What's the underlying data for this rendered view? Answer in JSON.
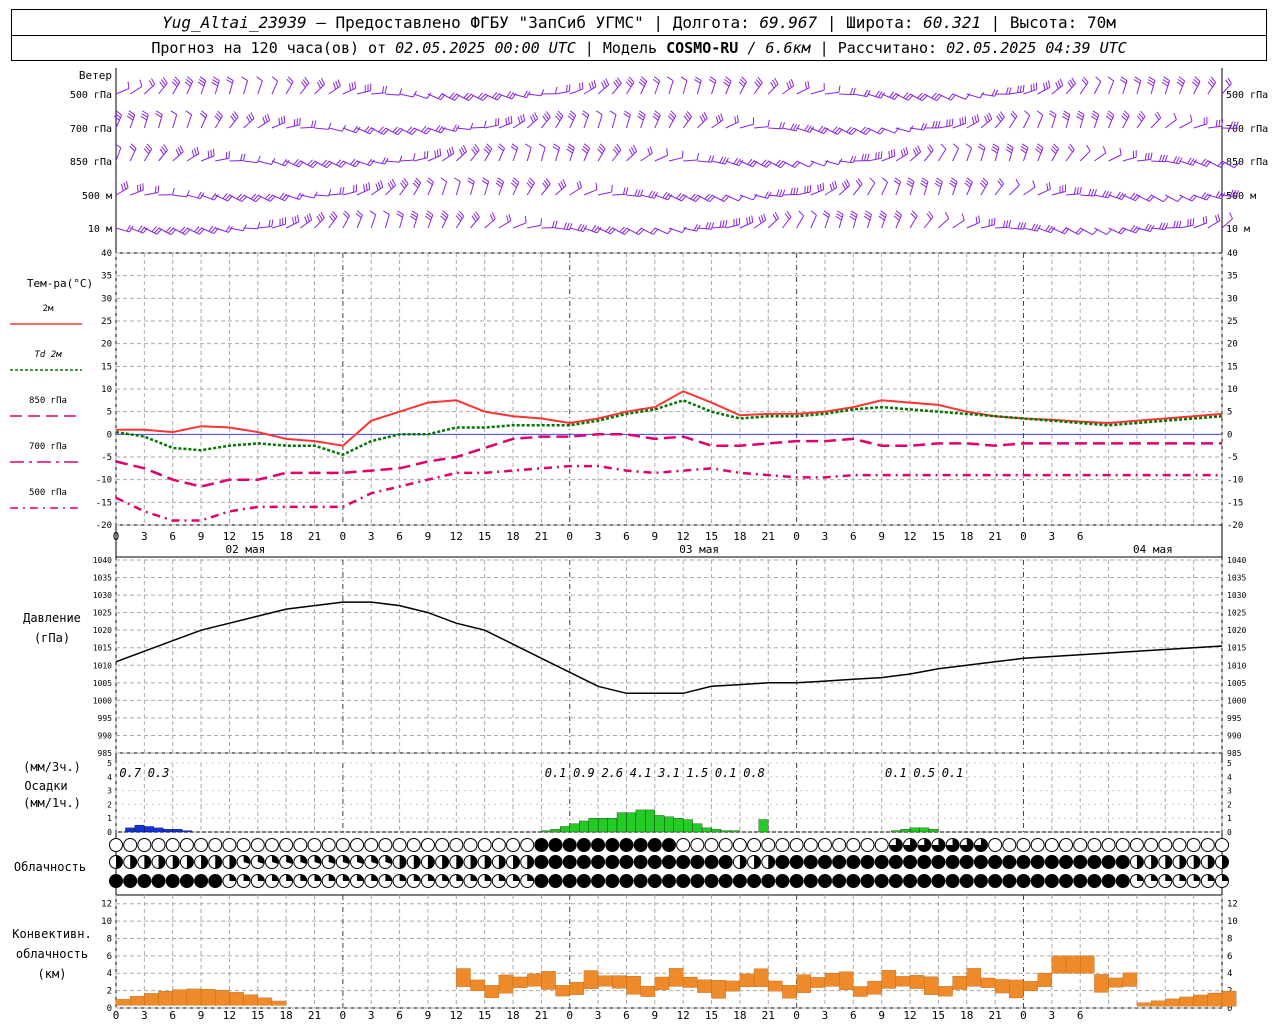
{
  "header": {
    "station": "Yug_Altai_23939",
    "provider": "– Предоставлено ФГБУ \"ЗапСиб УГМС\"",
    "lon_label": "Долгота:",
    "lon_value": "69.967",
    "lat_label": "Широта:",
    "lat_value": "60.321",
    "alt_label": "Высота:",
    "alt_value": "70м",
    "forecast_prefix": "Прогноз на 120 часа(ов) от",
    "forecast_start": "02.05.2025 00:00 UTC",
    "model_label": "Модель",
    "model_name": "COSMO-RU",
    "model_res": "/ 6.6км",
    "calc_label": "Рассчитано:",
    "calc_time": "02.05.2025 04:39 UTC"
  },
  "labels": {
    "wind_title": "Ветер",
    "wind_levels": [
      "500 гПа",
      "700 гПа",
      "850 гПа",
      "500 м",
      "10  м"
    ],
    "temp_title": "Тем-ра(°С)",
    "temp_legend": [
      "2м",
      "Td  2м",
      "850 гПа",
      "700 гПа",
      "500 гПа"
    ],
    "press_title": "Давление",
    "press_unit": "(гПа)",
    "precip_label_1": "(мм/3ч.)",
    "precip_label_2": "Осадки",
    "precip_label_3": "(мм/1ч.)",
    "cloud_title": "Облачность",
    "conv_1": "Конвективн.",
    "conv_2": "облачность",
    "conv_3": "(км)"
  },
  "colors": {
    "t2m": "#ff3333",
    "td2m": "#007700",
    "levels": "#e0006e",
    "pressure": "#000000",
    "precip_3h": "#1133dd",
    "precip_1h": "#22cc22",
    "convective": "#ef8a2a",
    "wind": "#8822dd",
    "zero_line": "#4444ff"
  },
  "chart_data": [
    {
      "type": "line",
      "name": "temperature",
      "x_hours": [
        0,
        3,
        6,
        9,
        12,
        15,
        18,
        21,
        24,
        27,
        30,
        33,
        36,
        39,
        42,
        45,
        48,
        51,
        54,
        57,
        60,
        63,
        66,
        69,
        72,
        75,
        78,
        81,
        84,
        87,
        90,
        93,
        96,
        99,
        102,
        105,
        108,
        111,
        114,
        117
      ],
      "x_ticks": [
        "0",
        "3",
        "6",
        "9",
        "12",
        "15",
        "18",
        "21",
        "0",
        "3",
        "6",
        "9",
        "12",
        "15",
        "18",
        "21",
        "0",
        "3",
        "6",
        "9",
        "12",
        "15",
        "18",
        "21",
        "0",
        "3",
        "6",
        "9",
        "12",
        "15",
        "18",
        "21",
        "0",
        "3",
        "6"
      ],
      "day_labels": [
        "02 мая",
        "03 мая",
        "04 мая"
      ],
      "ylim": [
        -20,
        40
      ],
      "yticks": [
        -20,
        -15,
        -10,
        -5,
        0,
        5,
        10,
        15,
        20,
        25,
        30,
        35,
        40
      ],
      "series": [
        {
          "key": "t2m",
          "values": [
            1,
            1,
            0.5,
            1.8,
            1.5,
            0.5,
            -1,
            -1.5,
            -2.5,
            3,
            5,
            7,
            7.5,
            5,
            4,
            3.5,
            2.5,
            3.5,
            5,
            6,
            9.5,
            7,
            4.2,
            4.5,
            4.5,
            5,
            6,
            7.5,
            7,
            6.5,
            5,
            4,
            3.5,
            3.2,
            2.8,
            2.5,
            3,
            3.5,
            4,
            4.5
          ]
        },
        {
          "key": "td2m",
          "values": [
            0.5,
            -0.5,
            -3,
            -3.5,
            -2.5,
            -2,
            -2.5,
            -2.5,
            -4.5,
            -1.5,
            0,
            0,
            1.5,
            1.5,
            2,
            2,
            2,
            3,
            4.5,
            5.5,
            7.5,
            5,
            3.5,
            4,
            4,
            4.5,
            5.5,
            6,
            5.5,
            5,
            4.5,
            4,
            3.5,
            3,
            2.5,
            2,
            2.5,
            3,
            3.5,
            4
          ]
        },
        {
          "key": "850",
          "values": [
            -6,
            -7.5,
            -10,
            -11.5,
            -10,
            -10,
            -8.5,
            -8.5,
            -8.5,
            -8,
            -7.5,
            -6,
            -5,
            -3,
            -1,
            -0.5,
            -0.5,
            0,
            0,
            -1,
            -0.5,
            -2.5,
            -2.5,
            -2,
            -1.5,
            -1.5,
            -1,
            -2.5,
            -2.5,
            -2,
            -2,
            -2.5,
            -2,
            -2,
            -2,
            -2,
            -2,
            -2,
            -2,
            -2
          ]
        },
        {
          "key": "700",
          "values": [
            -6,
            -7.5,
            -10,
            -11.5,
            -10,
            -10,
            -8.5,
            -8.5,
            -8.5,
            -8,
            -7.5,
            -6,
            -5,
            -3,
            -1,
            -0.5,
            -0.5,
            0,
            0,
            -1,
            -0.5,
            -2.5,
            -2.5,
            -2,
            -1.5,
            -1.5,
            -1,
            -2.5,
            -2.5,
            -2,
            -2,
            -2.5,
            -2,
            -2,
            -2,
            -2,
            -2,
            -2,
            -2,
            -2
          ]
        },
        {
          "key": "500",
          "values": [
            -14,
            -17,
            -19,
            -19,
            -17,
            -16,
            -16,
            -16,
            -16,
            -13,
            -11.5,
            -10,
            -8.5,
            -8.5,
            -8,
            -7.5,
            -7,
            -7,
            -8,
            -8.5,
            -8,
            -7.5,
            -8.5,
            -9,
            -9.5,
            -9.5,
            -9,
            -9,
            -9,
            -9,
            -9,
            -9,
            -9,
            -9,
            -9,
            -9,
            -9,
            -9,
            -9,
            -9
          ]
        }
      ]
    },
    {
      "type": "line",
      "name": "pressure",
      "ylim": [
        985,
        1040
      ],
      "yticks": [
        985,
        990,
        995,
        1000,
        1005,
        1010,
        1015,
        1020,
        1025,
        1030,
        1035,
        1040
      ],
      "x_hours": [
        0,
        3,
        6,
        9,
        12,
        15,
        18,
        21,
        24,
        27,
        30,
        33,
        36,
        39,
        42,
        45,
        48,
        51,
        54,
        57,
        60,
        63,
        66,
        69,
        72,
        75,
        78,
        81,
        84,
        87,
        90,
        93,
        96,
        99,
        102,
        105,
        108,
        111,
        114,
        117
      ],
      "values": [
        1011,
        1014,
        1017,
        1020,
        1022,
        1024,
        1026,
        1027,
        1028,
        1028,
        1027,
        1025,
        1022,
        1020,
        1016,
        1012,
        1008,
        1004,
        1002,
        1002,
        1002,
        1004,
        1004.5,
        1005,
        1005,
        1005.5,
        1006,
        1006.5,
        1007.5,
        1009,
        1010,
        1011,
        1012,
        1012.5,
        1013,
        1013.5,
        1014,
        1014.5,
        1015,
        1015.5
      ]
    },
    {
      "type": "bar",
      "name": "precipitation",
      "ylim": [
        0,
        5
      ],
      "yticks": [
        0,
        1,
        2,
        3,
        4,
        5
      ],
      "labels_3h": [
        {
          "hour": 1.5,
          "text": "0.7"
        },
        {
          "hour": 4.5,
          "text": "0.3"
        },
        {
          "hour": 46.5,
          "text": "0.1"
        },
        {
          "hour": 49.5,
          "text": "0.9"
        },
        {
          "hour": 52.5,
          "text": "2.6"
        },
        {
          "hour": 55.5,
          "text": "4.1"
        },
        {
          "hour": 58.5,
          "text": "3.1"
        },
        {
          "hour": 61.5,
          "text": "1.5"
        },
        {
          "hour": 64.5,
          "text": "0.1"
        },
        {
          "hour": 67.5,
          "text": "0.8"
        },
        {
          "hour": 82.5,
          "text": "0.1"
        },
        {
          "hour": 85.5,
          "text": "0.5"
        },
        {
          "hour": 88.5,
          "text": "0.1"
        }
      ],
      "hourly_blue": [
        0.3,
        0.5,
        0.4,
        0.3,
        0.2,
        0.2,
        0.1
      ],
      "hourly_green_start": 45,
      "hourly_green": [
        0.1,
        0.2,
        0.4,
        0.6,
        0.8,
        1.0,
        1.0,
        1.0,
        1.4,
        1.4,
        1.6,
        1.6,
        1.2,
        1.1,
        1.0,
        0.9,
        0.6,
        0.3,
        0.2,
        0.1,
        0.1,
        0.0,
        0.0,
        0.9,
        0,
        0,
        0,
        0,
        0,
        0,
        0,
        0,
        0,
        0,
        0,
        0,
        0,
        0.1,
        0.2,
        0.3,
        0.3,
        0.2
      ]
    },
    {
      "type": "bar",
      "name": "convective_cloud",
      "ylim": [
        0,
        13
      ],
      "yticks": [
        0,
        2,
        4,
        6,
        8,
        10,
        12
      ]
    }
  ]
}
